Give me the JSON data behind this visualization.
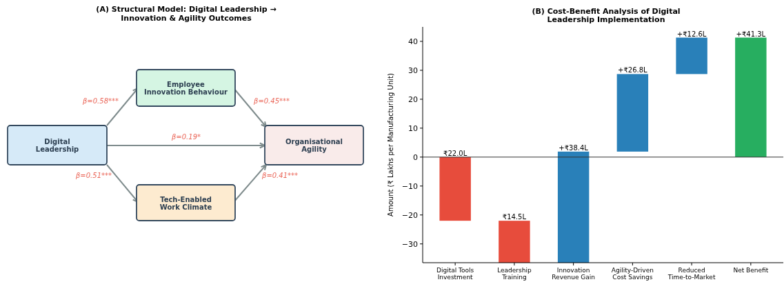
{
  "chart_data": [
    {
      "type": "other",
      "title": "(A) Structural Model: Digital Leadership →\nInnovation & Agility Outcomes",
      "categories": [
        "Digital\nLeadership",
        "Employee\nInnovation Behaviour",
        "Organisational\nAgility",
        "Tech-Enabled\nWork Climate"
      ],
      "colors": [
        "#d6eaf8",
        "#d5f5e3",
        "#f9ebea",
        "#fdebd0"
      ],
      "annotations": [
        "β=0.58***",
        "β=0.45***",
        "β=0.19*",
        "β=0.51***",
        "β=0.41***"
      ]
    },
    {
      "type": "bar",
      "title": "(B) Cost-Benefit Analysis of Digital\nLeadership Implementation",
      "ylabel": "Amount (₹ Lakhs per Manufacturing Unit)",
      "categories": [
        "Digital Tools\nInvestment",
        "Leadership\nTraining",
        "Innovation\nRevenue Gain",
        "Agility-Driven\nCost Savings",
        "Reduced\nTime-to-Market",
        "Net Benefit"
      ],
      "values": [
        -22,
        -14.5,
        38.4,
        26.8,
        12.6,
        41.3
      ],
      "base": [
        0,
        -22,
        -36.5,
        1.9,
        28.7,
        0
      ],
      "colors": [
        "#e74c3c",
        "#e74c3c",
        "#2980b9",
        "#2980b9",
        "#2980b9",
        "#27ae60"
      ],
      "value_labels": [
        "₹22.0L",
        "₹14.5L",
        "+₹38.4L",
        "+₹26.8L",
        "+₹12.6L",
        "+₹41.3L"
      ],
      "ylim": [
        -36.5,
        45
      ],
      "yticks": [
        -30,
        -20,
        -10,
        0,
        10,
        20,
        30,
        40
      ],
      "ref_lines": [
        {
          "axis": "y",
          "value": 0,
          "color": "#333333"
        }
      ],
      "grid": false
    }
  ]
}
